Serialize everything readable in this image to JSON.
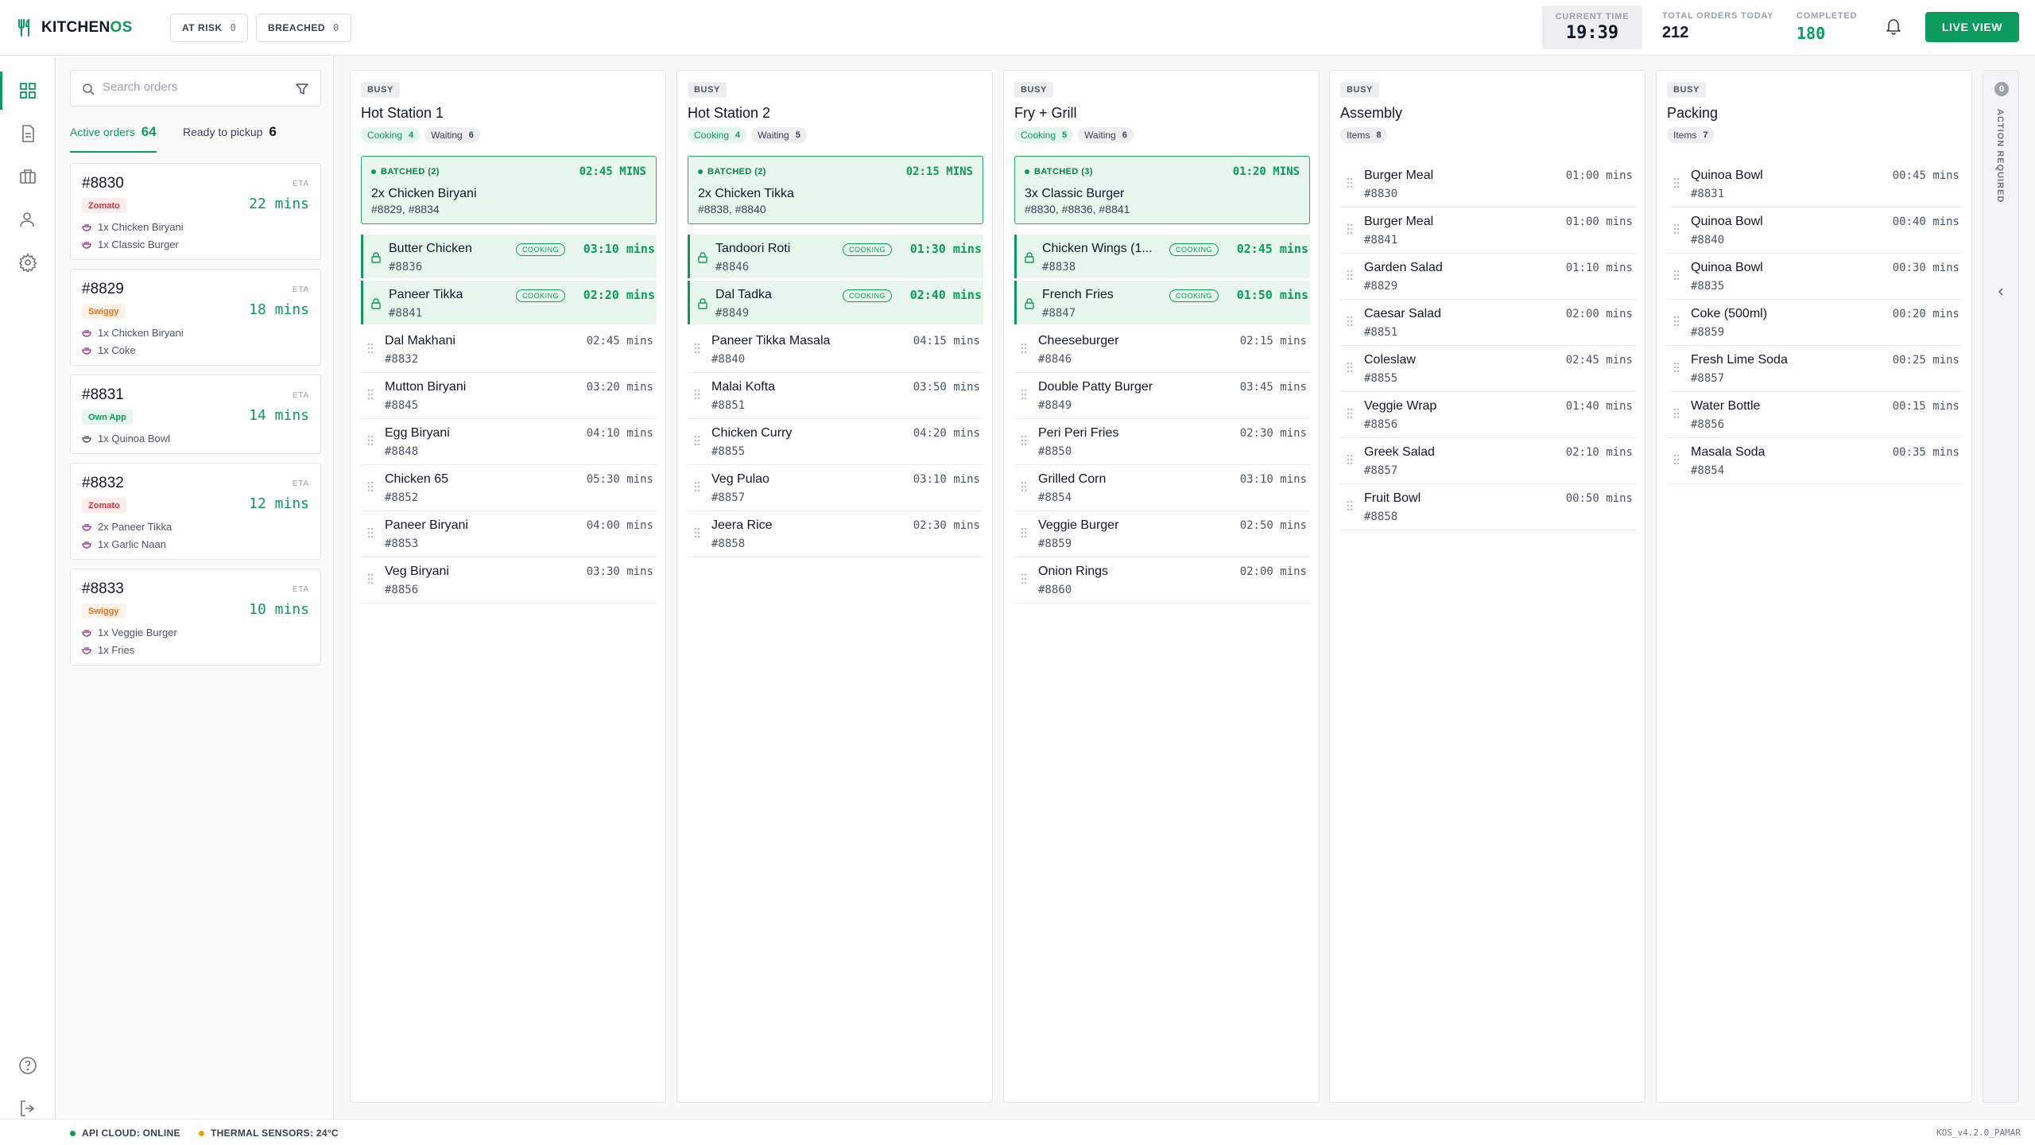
{
  "brand": {
    "name_a": "KITCHEN",
    "name_b": "OS",
    "accent": "#0b9b5e"
  },
  "header": {
    "at_risk": {
      "label": "AT RISK",
      "count": "0"
    },
    "breached": {
      "label": "BREACHED",
      "count": "0"
    },
    "current_time": {
      "label": "CURRENT TIME",
      "value": "19:39"
    },
    "total_orders": {
      "label": "TOTAL ORDERS TODAY",
      "value": "212"
    },
    "completed": {
      "label": "COMPLETED",
      "value": "180"
    },
    "live_view": "LIVE VIEW"
  },
  "rail": [
    "grid-icon",
    "document-icon",
    "briefcase-icon",
    "user-icon",
    "gear-icon",
    "help-icon",
    "logout-icon"
  ],
  "left": {
    "search_placeholder": "Search orders",
    "tabs": [
      {
        "label": "Active orders",
        "count": "64"
      },
      {
        "label": "Ready to pickup",
        "count": "6"
      }
    ],
    "orders": [
      {
        "id": "#8830",
        "source": "Zomato",
        "eta_label": "ETA",
        "eta": "22 mins",
        "items": [
          "1x Chicken Biryani",
          "1x Classic Burger"
        ]
      },
      {
        "id": "#8829",
        "source": "Swiggy",
        "eta_label": "ETA",
        "eta": "18 mins",
        "items": [
          "1x Chicken Biryani",
          "1x Coke"
        ]
      },
      {
        "id": "#8831",
        "source": "Own App",
        "eta_label": "ETA",
        "eta": "14 mins",
        "items": [
          "1x Quinoa Bowl"
        ]
      },
      {
        "id": "#8832",
        "source": "Zomato",
        "eta_label": "ETA",
        "eta": "12 mins",
        "items": [
          "2x Paneer Tikka",
          "1x Garlic Naan"
        ]
      },
      {
        "id": "#8833",
        "source": "Swiggy",
        "eta_label": "ETA",
        "eta": "10 mins",
        "items": [
          "1x Veggie Burger",
          "1x Fries"
        ]
      }
    ]
  },
  "stations": [
    {
      "status": "BUSY",
      "name": "Hot Station 1",
      "chips": [
        {
          "label": "Cooking",
          "count": "4"
        },
        {
          "label": "Waiting",
          "count": "6"
        }
      ],
      "batch": {
        "label": "BATCHED (2)",
        "time": "02:45 MINS",
        "name": "2x Chicken Biryani",
        "orders": "#8829, #8834"
      },
      "cooking_badge": "COOKING",
      "cooking": [
        {
          "name": "Butter Chicken",
          "order": "#8836",
          "time": "03:10 mins"
        },
        {
          "name": "Paneer Tikka",
          "order": "#8841",
          "time": "02:20 mins"
        }
      ],
      "waiting": [
        {
          "name": "Dal Makhani",
          "order": "#8832",
          "time": "02:45 mins"
        },
        {
          "name": "Mutton Biryani",
          "order": "#8845",
          "time": "03:20 mins"
        },
        {
          "name": "Egg Biryani",
          "order": "#8848",
          "time": "04:10 mins"
        },
        {
          "name": "Chicken 65",
          "order": "#8852",
          "time": "05:30 mins"
        },
        {
          "name": "Paneer Biryani",
          "order": "#8853",
          "time": "04:00 mins"
        },
        {
          "name": "Veg Biryani",
          "order": "#8856",
          "time": "03:30 mins"
        }
      ]
    },
    {
      "status": "BUSY",
      "name": "Hot Station 2",
      "chips": [
        {
          "label": "Cooking",
          "count": "4"
        },
        {
          "label": "Waiting",
          "count": "5"
        }
      ],
      "batch": {
        "label": "BATCHED (2)",
        "time": "02:15 MINS",
        "name": "2x Chicken Tikka",
        "orders": "#8838, #8840"
      },
      "cooking_badge": "COOKING",
      "cooking": [
        {
          "name": "Tandoori Roti",
          "order": "#8846",
          "time": "01:30 mins"
        },
        {
          "name": "Dal Tadka",
          "order": "#8849",
          "time": "02:40 mins"
        }
      ],
      "waiting": [
        {
          "name": "Paneer Tikka Masala",
          "order": "#8840",
          "time": "04:15 mins"
        },
        {
          "name": "Malai Kofta",
          "order": "#8851",
          "time": "03:50 mins"
        },
        {
          "name": "Chicken Curry",
          "order": "#8855",
          "time": "04:20 mins"
        },
        {
          "name": "Veg Pulao",
          "order": "#8857",
          "time": "03:10 mins"
        },
        {
          "name": "Jeera Rice",
          "order": "#8858",
          "time": "02:30 mins"
        }
      ]
    },
    {
      "status": "BUSY",
      "name": "Fry + Grill",
      "chips": [
        {
          "label": "Cooking",
          "count": "5"
        },
        {
          "label": "Waiting",
          "count": "6"
        }
      ],
      "batch": {
        "label": "BATCHED (3)",
        "time": "01:20 MINS",
        "name": "3x Classic Burger",
        "orders": "#8830, #8836, #8841"
      },
      "cooking_badge": "COOKING",
      "cooking": [
        {
          "name": "Chicken Wings (1...",
          "order": "#8838",
          "time": "02:45 mins"
        },
        {
          "name": "French Fries",
          "order": "#8847",
          "time": "01:50 mins"
        }
      ],
      "waiting": [
        {
          "name": "Cheeseburger",
          "order": "#8846",
          "time": "02:15 mins"
        },
        {
          "name": "Double Patty Burger",
          "order": "#8849",
          "time": "03:45 mins"
        },
        {
          "name": "Peri Peri Fries",
          "order": "#8850",
          "time": "02:30 mins"
        },
        {
          "name": "Grilled Corn",
          "order": "#8854",
          "time": "03:10 mins"
        },
        {
          "name": "Veggie Burger",
          "order": "#8859",
          "time": "02:50 mins"
        },
        {
          "name": "Onion Rings",
          "order": "#8860",
          "time": "02:00 mins"
        }
      ]
    },
    {
      "status": "BUSY",
      "name": "Assembly",
      "chips": [
        {
          "label": "Items",
          "count": "8"
        }
      ],
      "waiting": [
        {
          "name": "Burger Meal",
          "order": "#8830",
          "time": "01:00 mins"
        },
        {
          "name": "Burger Meal",
          "order": "#8841",
          "time": "01:00 mins"
        },
        {
          "name": "Garden Salad",
          "order": "#8829",
          "time": "01:10 mins"
        },
        {
          "name": "Caesar Salad",
          "order": "#8851",
          "time": "02:00 mins"
        },
        {
          "name": "Coleslaw",
          "order": "#8855",
          "time": "02:45 mins"
        },
        {
          "name": "Veggie Wrap",
          "order": "#8856",
          "time": "01:40 mins"
        },
        {
          "name": "Greek Salad",
          "order": "#8857",
          "time": "02:10 mins"
        },
        {
          "name": "Fruit Bowl",
          "order": "#8858",
          "time": "00:50 mins"
        }
      ]
    },
    {
      "status": "BUSY",
      "name": "Packing",
      "chips": [
        {
          "label": "Items",
          "count": "7"
        }
      ],
      "waiting": [
        {
          "name": "Quinoa Bowl",
          "order": "#8831",
          "time": "00:45 mins"
        },
        {
          "name": "Quinoa Bowl",
          "order": "#8840",
          "time": "00:40 mins"
        },
        {
          "name": "Quinoa Bowl",
          "order": "#8835",
          "time": "00:30 mins"
        },
        {
          "name": "Coke (500ml)",
          "order": "#8859",
          "time": "00:20 mins"
        },
        {
          "name": "Fresh Lime Soda",
          "order": "#8857",
          "time": "00:25 mins"
        },
        {
          "name": "Water Bottle",
          "order": "#8856",
          "time": "00:15 mins"
        },
        {
          "name": "Masala Soda",
          "order": "#8854",
          "time": "00:35 mins"
        }
      ]
    }
  ],
  "action": {
    "count": "0",
    "label": "ACTION REQUIRED"
  },
  "footer": {
    "api": "API CLOUD: ONLINE",
    "sensors": "THERMAL SENSORS: 24°C",
    "version": "KOS_v4.2.0_PAMAR"
  }
}
